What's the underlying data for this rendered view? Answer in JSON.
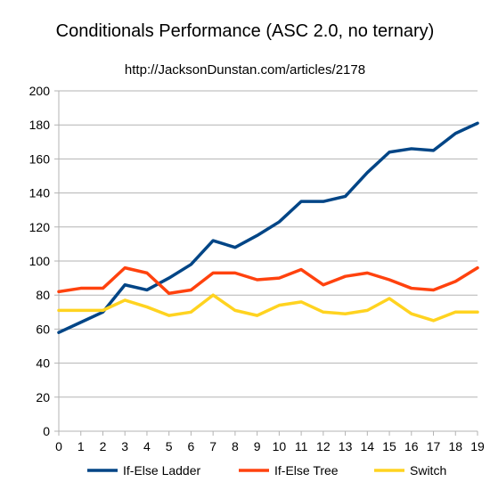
{
  "chart_data": {
    "type": "line",
    "title": "Conditionals Performance (ASC 2.0, no ternary)",
    "subtitle": "http://JacksonDunstan.com/articles/2178",
    "xlabel": "",
    "ylabel": "",
    "x": [
      0,
      1,
      2,
      3,
      4,
      5,
      6,
      7,
      8,
      9,
      10,
      11,
      12,
      13,
      14,
      15,
      16,
      17,
      18,
      19
    ],
    "xlim": [
      0,
      19
    ],
    "ylim": [
      0,
      200
    ],
    "yticks": [
      0,
      20,
      40,
      60,
      80,
      100,
      120,
      140,
      160,
      180,
      200
    ],
    "grid": "horizontal",
    "legend": "bottom",
    "series": [
      {
        "name": "If-Else Ladder",
        "color": "#004586",
        "values": [
          58,
          64,
          70,
          86,
          83,
          90,
          98,
          112,
          108,
          115,
          123,
          135,
          135,
          138,
          152,
          164,
          166,
          165,
          175,
          181
        ]
      },
      {
        "name": "If-Else Tree",
        "color": "#ff420e",
        "values": [
          82,
          84,
          84,
          96,
          93,
          81,
          83,
          93,
          93,
          89,
          90,
          95,
          86,
          91,
          93,
          89,
          84,
          83,
          88,
          96
        ]
      },
      {
        "name": "Switch",
        "color": "#ffd320",
        "values": [
          71,
          71,
          71,
          77,
          73,
          68,
          70,
          80,
          71,
          68,
          74,
          76,
          70,
          69,
          71,
          78,
          69,
          65,
          70,
          70
        ]
      }
    ]
  }
}
